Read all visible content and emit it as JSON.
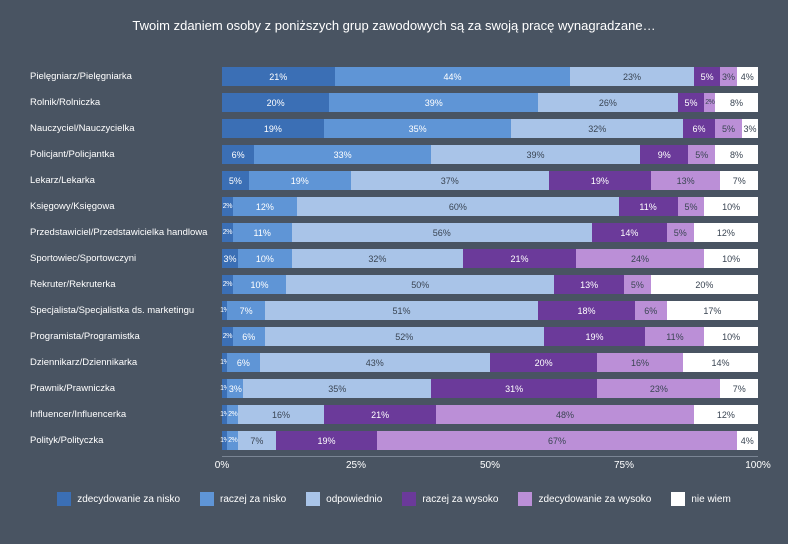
{
  "chart": {
    "type": "stacked-bar-horizontal",
    "title": "Twoim zdaniem osoby z poniższych grup zawodowych są za swoją pracę wynagradzane…",
    "background_color": "#495462",
    "text_color": "#ffffff",
    "title_fontsize": 13,
    "label_fontsize": 9.5,
    "value_fontsize": 9,
    "axis_fontsize": 10,
    "legend_fontsize": 10,
    "xlim": [
      0,
      100
    ],
    "xticks": [
      0,
      25,
      50,
      75,
      100
    ],
    "xtick_labels": [
      "0%",
      "25%",
      "50%",
      "75%",
      "100%"
    ],
    "categories": [
      {
        "key": "zdec_nisko",
        "label": "zdecydowanie za nisko",
        "color": "#3b6fb5",
        "text": "light"
      },
      {
        "key": "raczej_nisko",
        "label": "raczej za nisko",
        "color": "#5f95d6",
        "text": "light"
      },
      {
        "key": "odpowiednio",
        "label": "odpowiednio",
        "color": "#a9c4e8",
        "text": "dark"
      },
      {
        "key": "raczej_wysoko",
        "label": "raczej za wysoko",
        "color": "#6b3a9a",
        "text": "light"
      },
      {
        "key": "zdec_wysoko",
        "label": "zdecydowanie za wysoko",
        "color": "#bb8fd7",
        "text": "dark"
      },
      {
        "key": "nie_wiem",
        "label": "nie wiem",
        "color": "#ffffff",
        "text": "dark"
      }
    ],
    "rows": [
      {
        "label": "Pielęgniarz/Pielęgniarka",
        "values": [
          21,
          44,
          23,
          5,
          3,
          4
        ]
      },
      {
        "label": "Rolnik/Rolniczka",
        "values": [
          20,
          39,
          26,
          5,
          2,
          8
        ]
      },
      {
        "label": "Nauczyciel/Nauczycielka",
        "values": [
          19,
          35,
          32,
          6,
          5,
          3
        ]
      },
      {
        "label": "Policjant/Policjantka",
        "values": [
          6,
          33,
          39,
          9,
          5,
          8
        ]
      },
      {
        "label": "Lekarz/Lekarka",
        "values": [
          5,
          19,
          37,
          19,
          13,
          7
        ]
      },
      {
        "label": "Księgowy/Księgowa",
        "values": [
          2,
          12,
          60,
          11,
          5,
          10
        ]
      },
      {
        "label": "Przedstawiciel/Przedstawicielka handlowa",
        "values": [
          2,
          11,
          56,
          14,
          5,
          12
        ]
      },
      {
        "label": "Sportowiec/Sportowczyni",
        "values": [
          3,
          10,
          32,
          21,
          24,
          10
        ]
      },
      {
        "label": "Rekruter/Rekruterka",
        "values": [
          2,
          10,
          50,
          13,
          5,
          20
        ]
      },
      {
        "label": "Specjalista/Specjalistka ds. marketingu",
        "values": [
          1,
          7,
          51,
          18,
          6,
          17
        ]
      },
      {
        "label": "Programista/Programistka",
        "values": [
          2,
          6,
          52,
          19,
          11,
          10
        ]
      },
      {
        "label": "Dziennikarz/Dziennikarka",
        "values": [
          1,
          6,
          43,
          20,
          16,
          14
        ]
      },
      {
        "label": "Prawnik/Prawniczka",
        "values": [
          1,
          3,
          35,
          31,
          23,
          7
        ]
      },
      {
        "label": "Influencer/Influencerka",
        "values": [
          1,
          2,
          16,
          21,
          48,
          12
        ]
      },
      {
        "label": "Polityk/Polityczka",
        "values": [
          1,
          2,
          7,
          19,
          67,
          4
        ]
      }
    ]
  }
}
